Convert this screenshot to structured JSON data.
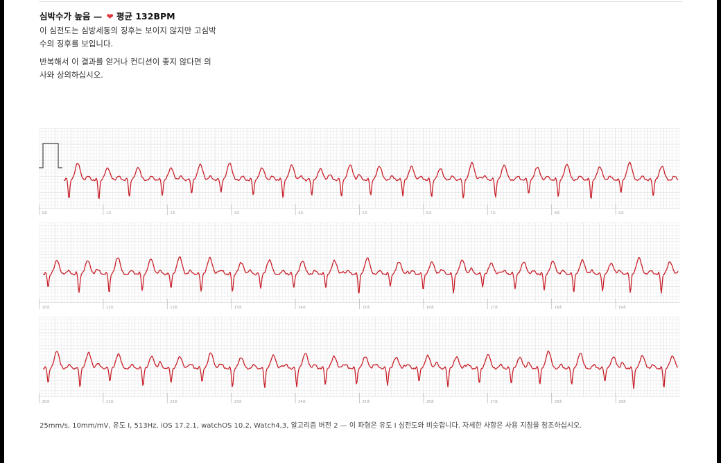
{
  "summary": {
    "title": "심박수가 높음",
    "dash": "—",
    "heart_icon": "heart-icon",
    "heart_color": "#e0333a",
    "avg_label": "평균 132BPM",
    "paragraph1_line1": "이 심전도는 심방세동의 징후는 보이지 않지만 고심박",
    "paragraph1_line2": "수의 징후를 보입니다.",
    "paragraph2_line1": "반복해서 이 결과를 얻거나 컨디션이 좋지 않다면 의",
    "paragraph2_line2": "사와 상의하십시오."
  },
  "ecg": {
    "trace_color": "#c8202a",
    "grid_color": "#e3e3e3",
    "strips": [
      {
        "tick_labels": [
          "0초",
          "1초",
          "2초",
          "3초",
          "4초",
          "5초",
          "6초",
          "7초",
          "8초",
          "9초"
        ],
        "calibration_pulse": true
      },
      {
        "tick_labels": [
          "10초",
          "11초",
          "12초",
          "13초",
          "14초",
          "15초",
          "16초",
          "17초",
          "18초",
          "19초"
        ],
        "calibration_pulse": false
      },
      {
        "tick_labels": [
          "20초",
          "21초",
          "22초",
          "23초",
          "24초",
          "25초",
          "26초",
          "27초",
          "28초",
          "29초"
        ],
        "calibration_pulse": false
      }
    ]
  },
  "footer": {
    "text": "25mm/s, 10mm/mV, 유도 I, 513Hz, iOS 17.2.1, watchOS 10.2, Watch4,3, 알고리즘 버전 2 — 이 파형은 유도 I 심전도와 비슷합니다. 자세한 사항은 사용 지침을 참조하십시오."
  }
}
